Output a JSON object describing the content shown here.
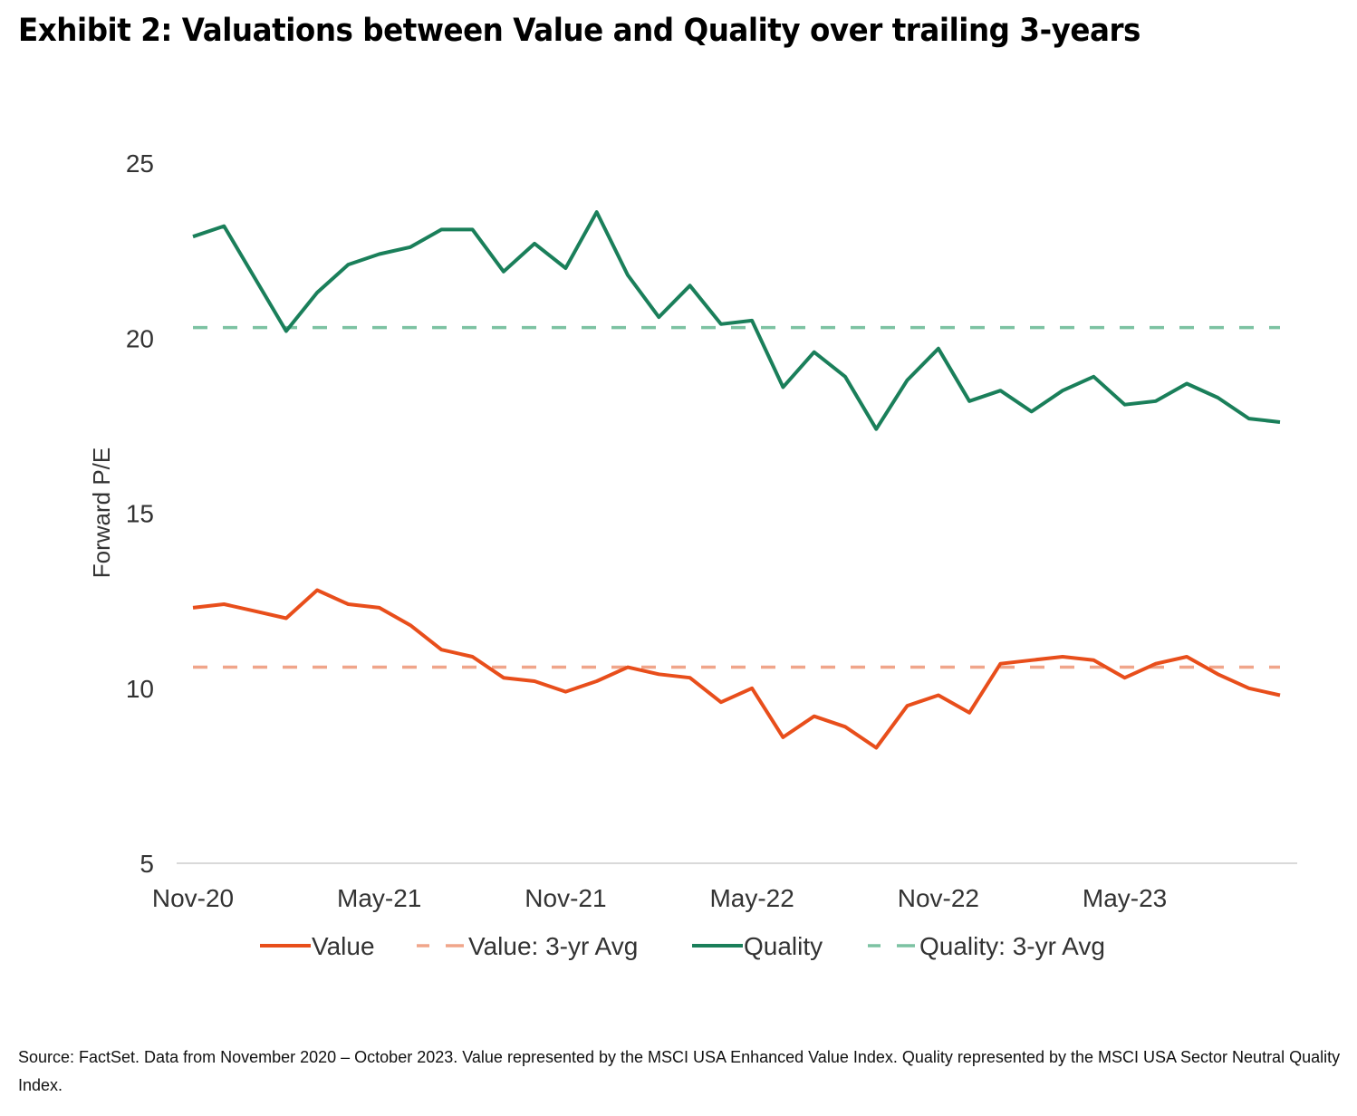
{
  "title": "Exhibit 2: Valuations between Value and Quality over trailing 3-years",
  "source": "Source: FactSet. Data from November 2020 – October 2023. Value represented by the MSCI USA Enhanced Value Index. Quality represented by the MSCI USA Sector Neutral Quality Index.",
  "colors": {
    "value": "#e84e1b",
    "value_avg": "#f0a58a",
    "quality": "#1a7f5a",
    "quality_avg": "#7cc2a2",
    "axis": "#d9d9d9"
  },
  "chart_data": {
    "type": "line",
    "title": "Exhibit 2: Valuations between Value and Quality over trailing 3-years",
    "xlabel": "",
    "ylabel": "Forward P/E",
    "ylim": [
      5,
      25
    ],
    "yticks": [
      "5",
      "10",
      "15",
      "20",
      "25"
    ],
    "ytick_values": [
      5,
      10,
      15,
      20,
      25
    ],
    "xtick_labels": [
      "Nov-20",
      "May-21",
      "Nov-21",
      "May-22",
      "Nov-22",
      "May-23"
    ],
    "xtick_indices": [
      0,
      6,
      12,
      18,
      24,
      30
    ],
    "x": [
      "Nov-20",
      "Dec-20",
      "Jan-21",
      "Feb-21",
      "Mar-21",
      "Apr-21",
      "May-21",
      "Jun-21",
      "Jul-21",
      "Aug-21",
      "Sep-21",
      "Oct-21",
      "Nov-21",
      "Dec-21",
      "Jan-22",
      "Feb-22",
      "Mar-22",
      "Apr-22",
      "May-22",
      "Jun-22",
      "Jul-22",
      "Aug-22",
      "Sep-22",
      "Oct-22",
      "Nov-22",
      "Dec-22",
      "Jan-23",
      "Feb-23",
      "Mar-23",
      "Apr-23",
      "May-23",
      "Jun-23",
      "Jul-23",
      "Aug-23",
      "Sep-23",
      "Oct-23"
    ],
    "grid": false,
    "legend_position": "bottom",
    "series": [
      {
        "name": "Value",
        "style": "solid",
        "values": [
          12.3,
          12.4,
          12.2,
          12.0,
          12.8,
          12.4,
          12.3,
          11.8,
          11.1,
          10.9,
          10.3,
          10.2,
          9.9,
          10.2,
          10.6,
          10.4,
          10.3,
          9.6,
          10.0,
          8.6,
          9.2,
          8.9,
          8.3,
          9.5,
          9.8,
          9.3,
          10.7,
          10.8,
          10.9,
          10.8,
          10.3,
          10.7,
          10.9,
          10.4,
          10.0,
          9.8
        ]
      },
      {
        "name": "Value: 3-yr Avg",
        "style": "dashed",
        "constant": 10.6
      },
      {
        "name": "Quality",
        "style": "solid",
        "values": [
          22.9,
          23.2,
          21.7,
          20.2,
          21.3,
          22.1,
          22.4,
          22.6,
          23.1,
          23.1,
          21.9,
          22.7,
          22.0,
          23.6,
          21.8,
          20.6,
          21.5,
          20.4,
          20.5,
          18.6,
          19.6,
          18.9,
          17.4,
          18.8,
          19.7,
          18.2,
          18.5,
          17.9,
          18.5,
          18.9,
          18.1,
          18.2,
          18.7,
          18.3,
          17.7,
          17.6
        ]
      },
      {
        "name": "Quality: 3-yr Avg",
        "style": "dashed",
        "constant": 20.3
      }
    ]
  }
}
